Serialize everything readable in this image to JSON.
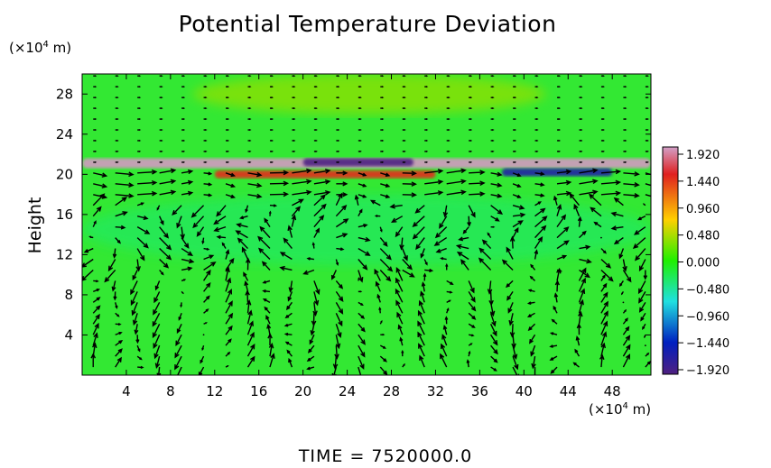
{
  "title": "Potential Temperature Deviation",
  "time_label": "TIME  =  7520000.0",
  "y_unit": {
    "prefix": "(×10",
    "exp": "4",
    "suffix": " m)"
  },
  "x_unit": {
    "prefix": "(×10",
    "exp": "4",
    "suffix": " m)"
  },
  "colors": {
    "field_background": "#33e833",
    "arrow": "#000000",
    "colorbar_stops": [
      "#d2a0c8",
      "#e02020",
      "#ffd000",
      "#20f000",
      "#20e0e0",
      "#0020c0",
      "#502080"
    ]
  },
  "chart_data": {
    "type": "heatmap",
    "overlay": "vector field (wind arrows)",
    "title": "Potential Temperature Deviation",
    "ylabel": "Height",
    "xlabel": "",
    "xlim": [
      0,
      51.5
    ],
    "ylim": [
      0,
      30
    ],
    "x_ticks": [
      4,
      8,
      12,
      16,
      20,
      24,
      28,
      32,
      36,
      40,
      44,
      48
    ],
    "y_ticks": [
      4,
      8,
      12,
      16,
      20,
      24,
      28
    ],
    "colorbar": {
      "range": [
        -1.92,
        1.92
      ],
      "ticks": [
        "1.920",
        "1.440",
        "0.960",
        "0.480",
        "0.000",
        "−0.480",
        "−0.960",
        "−1.440",
        "−1.920"
      ]
    },
    "features": [
      {
        "x": [
          0,
          51.5
        ],
        "y": [
          20.6,
          21.6
        ],
        "value": 1.9,
        "note": "warm layer"
      },
      {
        "x": [
          20,
          30
        ],
        "y": [
          20.8,
          21.6
        ],
        "value": -1.9,
        "note": "cold streak"
      },
      {
        "x": [
          38,
          48
        ],
        "y": [
          19.8,
          20.6
        ],
        "value": -1.6,
        "note": "cold streak"
      },
      {
        "x": [
          12,
          32
        ],
        "y": [
          19.6,
          20.4
        ],
        "value": 1.4,
        "note": "warm streak"
      },
      {
        "x": [
          10,
          42
        ],
        "y": [
          26,
          30
        ],
        "value": 0.35,
        "note": "weak warm region"
      },
      {
        "x": [
          0,
          51.5
        ],
        "y": [
          11,
          18
        ],
        "value": -0.3,
        "note": "cool patches"
      }
    ]
  }
}
